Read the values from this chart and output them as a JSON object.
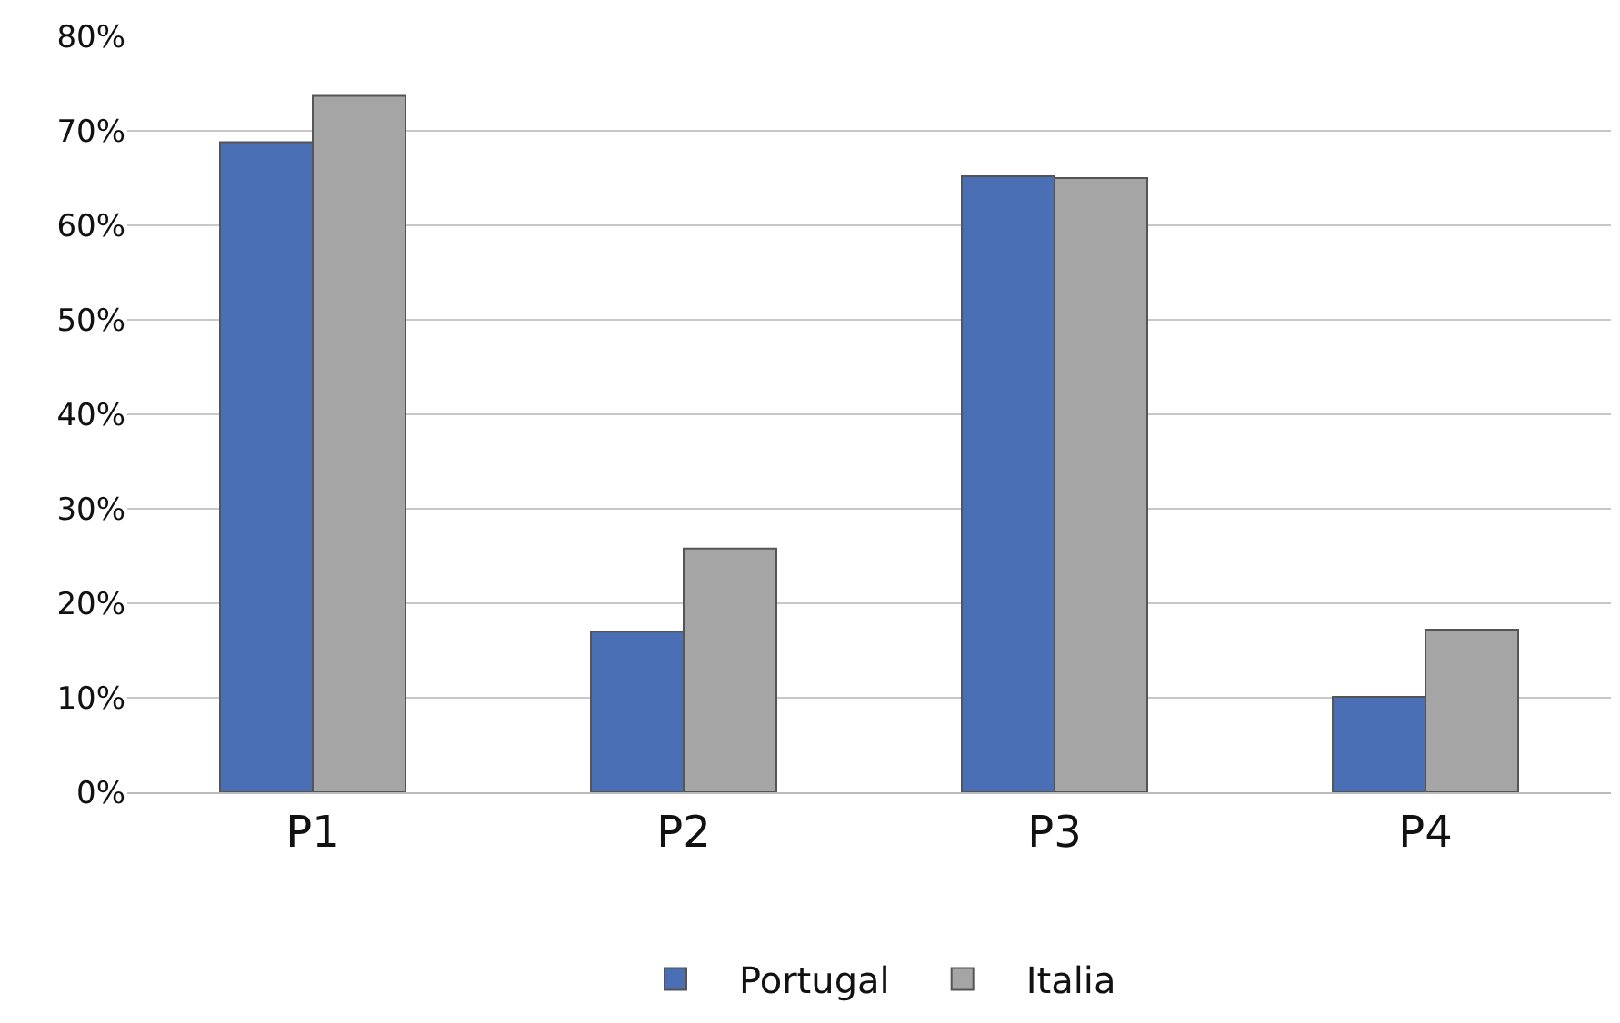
{
  "chart_data": {
    "type": "bar",
    "categories": [
      "P1",
      "P2",
      "P3",
      "P4"
    ],
    "series": [
      {
        "name": "Portugal",
        "color": "#4a6fb5",
        "values": [
          68.8,
          17,
          65.2,
          10.1
        ]
      },
      {
        "name": "Italia",
        "color": "#a5a5a5",
        "values": [
          73.7,
          25.8,
          65,
          17.2
        ]
      }
    ],
    "ylim": [
      0,
      80
    ],
    "yticks": [
      {
        "value": 0,
        "label": "0%"
      },
      {
        "value": 10,
        "label": "10%"
      },
      {
        "value": 20,
        "label": "20%"
      },
      {
        "value": 30,
        "label": "30%"
      },
      {
        "value": 40,
        "label": "40%"
      },
      {
        "value": 50,
        "label": "50%"
      },
      {
        "value": 60,
        "label": "60%"
      },
      {
        "value": 70,
        "label": "70%"
      },
      {
        "value": 80,
        "label": "80%"
      }
    ],
    "grid": "y",
    "legend": "bottom"
  }
}
